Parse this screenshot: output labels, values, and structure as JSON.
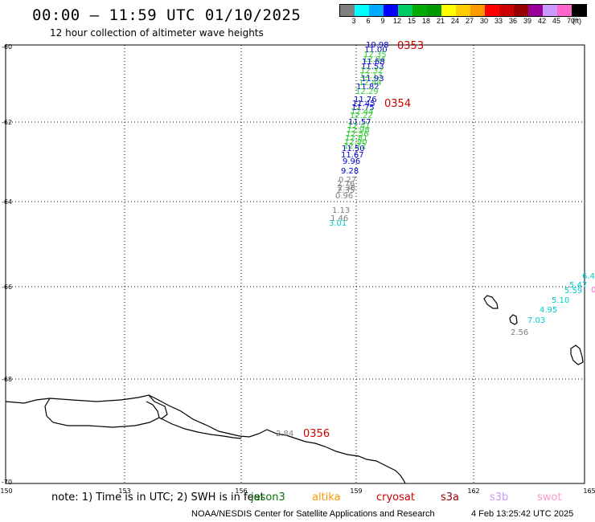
{
  "header": {
    "title": "00:00 – 11:59 UTC 01/10/2025",
    "subtitle": "12 hour collection of altimeter wave heights"
  },
  "legend": {
    "colors": [
      "#808080",
      "#00ffff",
      "#00aaff",
      "#0000ff",
      "#00cc66",
      "#00aa00",
      "#009900",
      "#ffff00",
      "#ffcc00",
      "#ff9900",
      "#ff0000",
      "#cc0000",
      "#990000",
      "#990099",
      "#cc99ff",
      "#ff66cc",
      "#000000"
    ],
    "ticks": [
      "3",
      "6",
      "9",
      "12",
      "15",
      "18",
      "21",
      "24",
      "27",
      "30",
      "33",
      "36",
      "39",
      "42",
      "45",
      "70"
    ],
    "unit": "(ft)"
  },
  "axes": {
    "lat_labels": [
      "-60",
      "-62",
      "-64",
      "-66",
      "-68",
      "-70"
    ],
    "lon_labels": [
      "150",
      "153",
      "156",
      "159",
      "162",
      "165"
    ]
  },
  "times": [
    {
      "text": "0353"
    },
    {
      "text": "0354"
    },
    {
      "text": "0356"
    }
  ],
  "readings": [
    {
      "text": "10.98",
      "color": "#0000cc"
    },
    {
      "text": "11.00",
      "color": "#0000cc"
    },
    {
      "text": "12.35",
      "color": "#33cc33"
    },
    {
      "text": "12.04",
      "color": "#33cc33"
    },
    {
      "text": "11.68",
      "color": "#0000cc"
    },
    {
      "text": "11.53",
      "color": "#0000cc"
    },
    {
      "text": "12.32",
      "color": "#33cc33"
    },
    {
      "text": "12.13",
      "color": "#33cc33"
    },
    {
      "text": "11.93",
      "color": "#0000cc"
    },
    {
      "text": "12.44",
      "color": "#33cc33"
    },
    {
      "text": "11.82",
      "color": "#0000cc"
    },
    {
      "text": "12.29",
      "color": "#33cc33"
    },
    {
      "text": "11.76",
      "color": "#0000cc"
    },
    {
      "text": "11.45",
      "color": "#0000cc"
    },
    {
      "text": "11.75",
      "color": "#0000cc"
    },
    {
      "text": "12.44",
      "color": "#33cc33"
    },
    {
      "text": "12.22",
      "color": "#33cc33"
    },
    {
      "text": "11.57",
      "color": "#0000cc"
    },
    {
      "text": "12.41",
      "color": "#33cc33"
    },
    {
      "text": "12.98",
      "color": "#33cc33"
    },
    {
      "text": "12.56",
      "color": "#33cc33"
    },
    {
      "text": "12.81",
      "color": "#33cc33"
    },
    {
      "text": "12.90",
      "color": "#33cc33"
    },
    {
      "text": "12.72",
      "color": "#33cc33"
    },
    {
      "text": "11.50",
      "color": "#0000cc"
    },
    {
      "text": "11.67",
      "color": "#0000cc"
    },
    {
      "text": "9.96",
      "color": "#0000cc"
    },
    {
      "text": "9.28",
      "color": "#0000cc"
    },
    {
      "text": "0.27",
      "color": "#808080"
    },
    {
      "text": "2.76",
      "color": "#808080"
    },
    {
      "text": "2.38",
      "color": "#808080"
    },
    {
      "text": "2.35",
      "color": "#808080"
    },
    {
      "text": "0.96",
      "color": "#808080"
    },
    {
      "text": "1.13",
      "color": "#808080"
    },
    {
      "text": "1.46",
      "color": "#808080"
    },
    {
      "text": "3.01",
      "color": "#00cccc"
    },
    {
      "text": "6.4",
      "color": "#00cccc"
    },
    {
      "text": "5.47",
      "color": "#00cccc"
    },
    {
      "text": "5.59",
      "color": "#00cccc"
    },
    {
      "text": "5.10",
      "color": "#00cccc"
    },
    {
      "text": "4.95",
      "color": "#00cccc"
    },
    {
      "text": "7.03",
      "color": "#00cccc"
    },
    {
      "text": "2.56",
      "color": "#808080"
    },
    {
      "text": "2.84",
      "color": "#808080"
    },
    {
      "text": "0",
      "color": "#ff66cc"
    }
  ],
  "note": "note: 1) Time is in UTC; 2) SWH is in feet",
  "satellites": [
    {
      "name": "jason3",
      "color": "#007700"
    },
    {
      "name": "altika",
      "color": "#ff9900"
    },
    {
      "name": "cryosat",
      "color": "#cc0000"
    },
    {
      "name": "s3a",
      "color": "#990000"
    },
    {
      "name": "s3b",
      "color": "#cc99ff"
    },
    {
      "name": "swot",
      "color": "#ff99cc"
    }
  ],
  "footer": {
    "left": "NOAA/NESDIS Center for Satellite Applications and Research",
    "right": "4 Feb 13:25:42 UTC 2025"
  }
}
